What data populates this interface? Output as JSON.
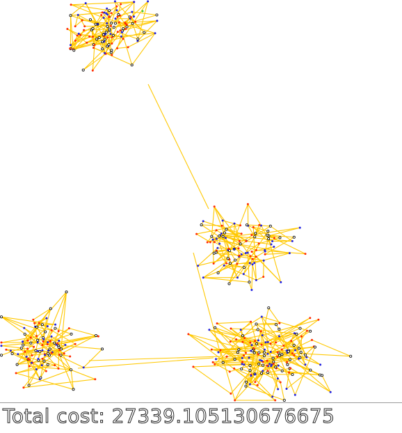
{
  "total_cost_text": "Total cost: 27339.105130676675",
  "colors": {
    "edge": "#ffc800",
    "node_red": "#ff2a00",
    "node_blue": "#2020e0",
    "node_white": "#ffffff",
    "node_outline": "#000000",
    "node_green": "#33cc33",
    "divider": "#9a9a9a"
  }
}
